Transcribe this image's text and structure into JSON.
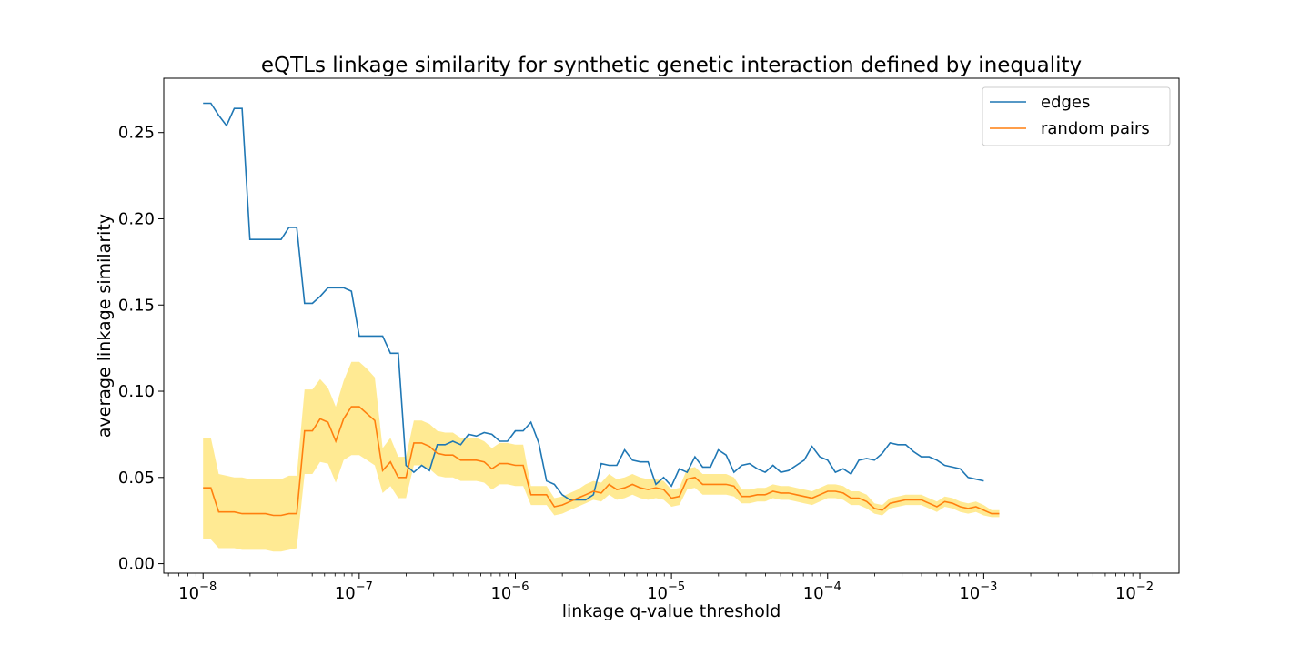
{
  "chart_data": {
    "type": "line",
    "title": "eQTLs linkage similarity for synthetic genetic interaction defined by inequality",
    "xlabel": "linkage q-value threshold",
    "ylabel": "average linkage similarity",
    "xscale": "log",
    "xlim": [
      5.6e-09,
      0.0178
    ],
    "ylim": [
      -0.0055,
      0.2815
    ],
    "x_ticks": [
      {
        "value": 1e-08,
        "base": "10",
        "exp": "−8"
      },
      {
        "value": 1e-07,
        "base": "10",
        "exp": "−7"
      },
      {
        "value": 1e-06,
        "base": "10",
        "exp": "−6"
      },
      {
        "value": 1e-05,
        "base": "10",
        "exp": "−5"
      },
      {
        "value": 0.0001,
        "base": "10",
        "exp": "−4"
      },
      {
        "value": 0.001,
        "base": "10",
        "exp": "−3"
      },
      {
        "value": 0.01,
        "base": "10",
        "exp": "−2"
      }
    ],
    "y_ticks": [
      {
        "value": 0.0,
        "label": "0.00"
      },
      {
        "value": 0.05,
        "label": "0.05"
      },
      {
        "value": 0.1,
        "label": "0.10"
      },
      {
        "value": 0.15,
        "label": "0.15"
      },
      {
        "value": 0.2,
        "label": "0.20"
      },
      {
        "value": 0.25,
        "label": "0.25"
      }
    ],
    "grid": false,
    "legend_position": "top-right",
    "colors": {
      "edges": "#1f77b4",
      "random": "#ff7f0e",
      "band": "#ffe680"
    },
    "x_exponent_start": -8,
    "x_exponent_step": 0.05,
    "series": [
      {
        "name": "edges",
        "values": [
          0.267,
          0.267,
          0.26,
          0.254,
          0.264,
          0.264,
          0.188,
          0.188,
          0.188,
          0.188,
          0.188,
          0.195,
          0.195,
          0.151,
          0.151,
          0.155,
          0.16,
          0.16,
          0.16,
          0.158,
          0.132,
          0.132,
          0.132,
          0.132,
          0.122,
          0.122,
          0.057,
          0.053,
          0.057,
          0.054,
          0.069,
          0.069,
          0.071,
          0.069,
          0.075,
          0.074,
          0.076,
          0.075,
          0.071,
          0.071,
          0.077,
          0.077,
          0.082,
          0.07,
          0.048,
          0.046,
          0.04,
          0.037,
          0.037,
          0.037,
          0.04,
          0.058,
          0.057,
          0.057,
          0.066,
          0.06,
          0.059,
          0.059,
          0.046,
          0.05,
          0.045,
          0.055,
          0.053,
          0.062,
          0.056,
          0.056,
          0.066,
          0.063,
          0.053,
          0.057,
          0.058,
          0.055,
          0.053,
          0.057,
          0.053,
          0.054,
          0.057,
          0.06,
          0.068,
          0.062,
          0.06,
          0.053,
          0.055,
          0.052,
          0.06,
          0.061,
          0.06,
          0.064,
          0.07,
          0.069,
          0.069,
          0.065,
          0.062,
          0.062,
          0.06,
          0.057,
          0.056,
          0.055,
          0.05,
          0.049,
          0.048
        ]
      },
      {
        "name": "random pairs",
        "values": [
          0.044,
          0.044,
          0.03,
          0.03,
          0.03,
          0.029,
          0.029,
          0.029,
          0.029,
          0.028,
          0.028,
          0.029,
          0.029,
          0.077,
          0.077,
          0.084,
          0.082,
          0.071,
          0.084,
          0.091,
          0.091,
          0.087,
          0.083,
          0.054,
          0.059,
          0.05,
          0.05,
          0.07,
          0.07,
          0.068,
          0.064,
          0.063,
          0.063,
          0.06,
          0.06,
          0.06,
          0.059,
          0.055,
          0.058,
          0.058,
          0.057,
          0.057,
          0.04,
          0.04,
          0.04,
          0.033,
          0.034,
          0.036,
          0.038,
          0.04,
          0.042,
          0.041,
          0.046,
          0.043,
          0.044,
          0.046,
          0.044,
          0.043,
          0.044,
          0.043,
          0.038,
          0.039,
          0.049,
          0.05,
          0.046,
          0.046,
          0.046,
          0.046,
          0.045,
          0.039,
          0.039,
          0.04,
          0.04,
          0.042,
          0.041,
          0.041,
          0.04,
          0.039,
          0.038,
          0.04,
          0.042,
          0.042,
          0.041,
          0.038,
          0.038,
          0.036,
          0.032,
          0.031,
          0.035,
          0.036,
          0.037,
          0.037,
          0.037,
          0.035,
          0.033,
          0.036,
          0.035,
          0.033,
          0.032,
          0.033,
          0.031,
          0.029,
          0.029
        ]
      }
    ],
    "band_upper": [
      0.073,
      0.073,
      0.052,
      0.051,
      0.05,
      0.05,
      0.049,
      0.049,
      0.049,
      0.049,
      0.049,
      0.051,
      0.051,
      0.101,
      0.101,
      0.107,
      0.102,
      0.091,
      0.106,
      0.117,
      0.117,
      0.113,
      0.108,
      0.067,
      0.073,
      0.062,
      0.062,
      0.083,
      0.083,
      0.081,
      0.077,
      0.076,
      0.076,
      0.073,
      0.073,
      0.073,
      0.071,
      0.067,
      0.07,
      0.07,
      0.069,
      0.069,
      0.045,
      0.045,
      0.045,
      0.038,
      0.039,
      0.041,
      0.043,
      0.046,
      0.048,
      0.047,
      0.052,
      0.049,
      0.05,
      0.052,
      0.05,
      0.049,
      0.049,
      0.048,
      0.043,
      0.044,
      0.055,
      0.056,
      0.052,
      0.052,
      0.052,
      0.052,
      0.05,
      0.043,
      0.043,
      0.044,
      0.044,
      0.046,
      0.045,
      0.045,
      0.044,
      0.043,
      0.042,
      0.044,
      0.046,
      0.046,
      0.045,
      0.042,
      0.042,
      0.04,
      0.035,
      0.034,
      0.038,
      0.039,
      0.04,
      0.04,
      0.04,
      0.038,
      0.036,
      0.039,
      0.038,
      0.036,
      0.035,
      0.036,
      0.034,
      0.031,
      0.031
    ],
    "band_lower": [
      0.014,
      0.014,
      0.009,
      0.009,
      0.009,
      0.008,
      0.008,
      0.008,
      0.008,
      0.007,
      0.007,
      0.008,
      0.009,
      0.052,
      0.052,
      0.059,
      0.058,
      0.047,
      0.06,
      0.063,
      0.063,
      0.06,
      0.057,
      0.041,
      0.045,
      0.038,
      0.038,
      0.057,
      0.057,
      0.055,
      0.051,
      0.05,
      0.05,
      0.048,
      0.048,
      0.048,
      0.047,
      0.043,
      0.046,
      0.046,
      0.045,
      0.045,
      0.034,
      0.034,
      0.034,
      0.028,
      0.029,
      0.031,
      0.033,
      0.035,
      0.037,
      0.036,
      0.04,
      0.037,
      0.038,
      0.04,
      0.038,
      0.037,
      0.038,
      0.037,
      0.033,
      0.034,
      0.043,
      0.044,
      0.04,
      0.04,
      0.04,
      0.04,
      0.039,
      0.035,
      0.035,
      0.036,
      0.036,
      0.038,
      0.037,
      0.037,
      0.036,
      0.035,
      0.034,
      0.036,
      0.038,
      0.038,
      0.037,
      0.034,
      0.034,
      0.032,
      0.029,
      0.028,
      0.032,
      0.033,
      0.034,
      0.034,
      0.034,
      0.032,
      0.03,
      0.033,
      0.032,
      0.03,
      0.029,
      0.03,
      0.028,
      0.027,
      0.027
    ]
  }
}
